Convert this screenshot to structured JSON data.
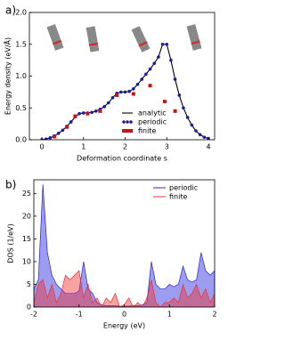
{
  "chart_data": [
    {
      "type": "line",
      "panel_label": "a)",
      "x_label": "Deformation coordinate s",
      "y_label": "Energy density (eV/Å)",
      "xlim": [
        -0.3,
        4.15
      ],
      "xticks": [
        0,
        1,
        2,
        3,
        4
      ],
      "ylim": [
        0,
        2.0
      ],
      "yticks": [
        {
          "value": 0,
          "label": "0.0"
        },
        {
          "value": 0.5,
          "label": "0.5"
        },
        {
          "value": 1.0,
          "label": "1.0"
        },
        {
          "value": 1.5,
          "label": "1.5"
        },
        {
          "value": 2.0,
          "label": "2.0"
        }
      ],
      "legend": "lower center",
      "series": [
        {
          "name": "analytic",
          "color": "#000000",
          "marker": "none",
          "x": [
            0,
            0.1,
            0.2,
            0.3,
            0.4,
            0.5,
            0.6,
            0.7,
            0.8,
            0.9,
            1.0,
            1.1,
            1.2,
            1.3,
            1.4,
            1.5,
            1.6,
            1.7,
            1.8,
            1.9,
            2.0,
            2.1,
            2.2,
            2.3,
            2.4,
            2.5,
            2.6,
            2.7,
            2.8,
            2.9,
            3.0,
            3.1,
            3.2,
            3.3,
            3.4,
            3.5,
            3.6,
            3.7,
            3.8,
            3.9,
            4.0
          ],
          "values": [
            0,
            0.01,
            0.03,
            0.06,
            0.1,
            0.15,
            0.21,
            0.28,
            0.36,
            0.41,
            0.42,
            0.42,
            0.43,
            0.45,
            0.48,
            0.52,
            0.58,
            0.66,
            0.73,
            0.75,
            0.75,
            0.76,
            0.8,
            0.87,
            0.95,
            1.03,
            1.11,
            1.2,
            1.3,
            1.5,
            1.5,
            1.25,
            0.95,
            0.7,
            0.5,
            0.35,
            0.23,
            0.14,
            0.08,
            0.04,
            0.02
          ]
        },
        {
          "name": "periodic",
          "color": "#1a1aa6",
          "marker": "circle",
          "x": [
            0,
            0.1,
            0.2,
            0.3,
            0.4,
            0.5,
            0.6,
            0.7,
            0.8,
            0.9,
            1.0,
            1.1,
            1.2,
            1.3,
            1.4,
            1.5,
            1.6,
            1.7,
            1.8,
            1.9,
            2.0,
            2.1,
            2.2,
            2.3,
            2.4,
            2.5,
            2.6,
            2.7,
            2.8,
            2.9,
            3.0,
            3.1,
            3.2,
            3.3,
            3.4,
            3.5,
            3.6,
            3.7,
            3.8,
            3.9,
            4.0
          ],
          "values": [
            0,
            0.01,
            0.03,
            0.06,
            0.1,
            0.15,
            0.21,
            0.28,
            0.36,
            0.41,
            0.42,
            0.42,
            0.43,
            0.45,
            0.48,
            0.52,
            0.58,
            0.66,
            0.73,
            0.75,
            0.75,
            0.76,
            0.8,
            0.87,
            0.95,
            1.03,
            1.11,
            1.2,
            1.3,
            1.5,
            1.5,
            1.25,
            0.95,
            0.7,
            0.5,
            0.35,
            0.23,
            0.14,
            0.08,
            0.04,
            0.02
          ]
        },
        {
          "name": "finite",
          "color": "#cc1111",
          "marker": "square",
          "x": [
            0.3,
            0.6,
            0.8,
            1.1,
            1.4,
            1.8,
            2.2,
            2.6,
            2.95,
            3.2
          ],
          "values": [
            0.05,
            0.2,
            0.37,
            0.41,
            0.45,
            0.7,
            0.72,
            0.85,
            0.6,
            0.45
          ]
        }
      ]
    },
    {
      "type": "area",
      "panel_label": "b)",
      "x_label": "Energy (eV)",
      "y_label": "DOS (1/eV)",
      "xlim": [
        -2,
        2
      ],
      "xticks": [
        -2,
        -1,
        0,
        1,
        2
      ],
      "ylim": [
        0,
        28
      ],
      "yticks": [
        0,
        5,
        10,
        15,
        20,
        25
      ],
      "legend": "upper right",
      "series": [
        {
          "name": "periodic",
          "color": "#2424e0",
          "x": [
            -2.0,
            -1.9,
            -1.8,
            -1.7,
            -1.6,
            -1.5,
            -1.4,
            -1.3,
            -1.2,
            -1.1,
            -1.0,
            -0.9,
            -0.8,
            -0.7,
            -0.6,
            -0.5,
            -0.4,
            -0.3,
            -0.2,
            -0.1,
            0,
            0.1,
            0.2,
            0.3,
            0.4,
            0.5,
            0.6,
            0.7,
            0.8,
            0.9,
            1.0,
            1.1,
            1.2,
            1.3,
            1.4,
            1.5,
            1.6,
            1.7,
            1.8,
            1.9,
            2.0
          ],
          "values": [
            4,
            6,
            27,
            12,
            7,
            5,
            4,
            3,
            3,
            3,
            3.5,
            10,
            4,
            3,
            1,
            0.5,
            0.3,
            0.3,
            0.3,
            0.2,
            0.2,
            0.2,
            0.3,
            0.3,
            0.5,
            1,
            10,
            5,
            4,
            4,
            5,
            4.5,
            5,
            9,
            6,
            5.5,
            6,
            12,
            8,
            7,
            8
          ]
        },
        {
          "name": "finite",
          "color": "#f03030",
          "x": [
            -2.0,
            -1.9,
            -1.8,
            -1.7,
            -1.6,
            -1.5,
            -1.4,
            -1.3,
            -1.2,
            -1.1,
            -1.0,
            -0.9,
            -0.8,
            -0.7,
            -0.6,
            -0.5,
            -0.4,
            -0.3,
            -0.2,
            -0.1,
            0,
            0.1,
            0.2,
            0.3,
            0.4,
            0.5,
            0.6,
            0.7,
            0.8,
            0.9,
            1.0,
            1.1,
            1.2,
            1.3,
            1.4,
            1.5,
            1.6,
            1.7,
            1.8,
            1.9,
            2.0
          ],
          "values": [
            1,
            5,
            6,
            2,
            5,
            1,
            3,
            7,
            6,
            7,
            8,
            2,
            5,
            1,
            2,
            0,
            2,
            1,
            3,
            0,
            0.5,
            2,
            0,
            1,
            0,
            2,
            6,
            1,
            0,
            1,
            1,
            2,
            1,
            5,
            2,
            3,
            5,
            2,
            4,
            1,
            3
          ]
        }
      ]
    }
  ]
}
